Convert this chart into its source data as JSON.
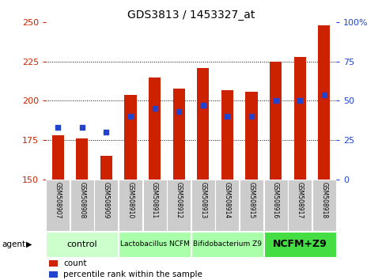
{
  "title": "GDS3813 / 1453327_at",
  "samples": [
    "GSM508907",
    "GSM508908",
    "GSM508909",
    "GSM508910",
    "GSM508911",
    "GSM508912",
    "GSM508913",
    "GSM508914",
    "GSM508915",
    "GSM508916",
    "GSM508917",
    "GSM508918"
  ],
  "bar_tops": [
    178,
    176,
    165,
    204,
    215,
    208,
    221,
    207,
    206,
    225,
    228,
    248
  ],
  "bar_base": 150,
  "percentile_vals": [
    183,
    183,
    180,
    190,
    195,
    193,
    197,
    190,
    190,
    200,
    200,
    204
  ],
  "left_ylim": [
    150,
    250
  ],
  "left_yticks": [
    150,
    175,
    200,
    225,
    250
  ],
  "right_ylim": [
    0,
    100
  ],
  "right_yticks": [
    0,
    25,
    50,
    75,
    100
  ],
  "right_yticklabels": [
    "0",
    "25",
    "50",
    "75",
    "100%"
  ],
  "bar_color": "#cc2200",
  "blue_color": "#2244cc",
  "groups_data": [
    {
      "label": "control",
      "start": 0,
      "end": 3,
      "color": "#ccffcc",
      "fontsize": 8,
      "fontweight": "normal"
    },
    {
      "label": "Lactobacillus NCFM",
      "start": 3,
      "end": 6,
      "color": "#aaffaa",
      "fontsize": 6.5,
      "fontweight": "normal"
    },
    {
      "label": "Bifidobacterium Z9",
      "start": 6,
      "end": 9,
      "color": "#aaffaa",
      "fontsize": 6.5,
      "fontweight": "normal"
    },
    {
      "label": "NCFM+Z9",
      "start": 9,
      "end": 12,
      "color": "#44dd44",
      "fontsize": 9,
      "fontweight": "bold"
    }
  ],
  "left_color": "#cc2200",
  "right_color": "#2244cc",
  "grid_lines": [
    175,
    200,
    225
  ],
  "legend_count": "count",
  "legend_pct": "percentile rank within the sample",
  "agent_text": "agent",
  "title_fontsize": 10,
  "bar_width": 0.5
}
